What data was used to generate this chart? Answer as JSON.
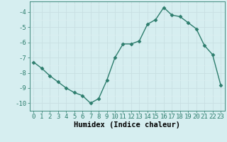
{
  "x": [
    0,
    1,
    2,
    3,
    4,
    5,
    6,
    7,
    8,
    9,
    10,
    11,
    12,
    13,
    14,
    15,
    16,
    17,
    18,
    19,
    20,
    21,
    22,
    23
  ],
  "y": [
    -7.3,
    -7.7,
    -8.2,
    -8.6,
    -9.0,
    -9.3,
    -9.5,
    -10.0,
    -9.7,
    -8.5,
    -7.0,
    -6.1,
    -6.1,
    -5.9,
    -4.8,
    -4.5,
    -3.7,
    -4.2,
    -4.3,
    -4.7,
    -5.1,
    -6.2,
    -6.8,
    -8.8
  ],
  "line_color": "#2d7d6d",
  "marker": "D",
  "marker_size": 2.5,
  "bg_color": "#d6eef0",
  "xlabel": "Humidex (Indice chaleur)",
  "xlim": [
    -0.5,
    23.5
  ],
  "ylim": [
    -10.5,
    -3.3
  ],
  "xticks": [
    0,
    1,
    2,
    3,
    4,
    5,
    6,
    7,
    8,
    9,
    10,
    11,
    12,
    13,
    14,
    15,
    16,
    17,
    18,
    19,
    20,
    21,
    22,
    23
  ],
  "yticks": [
    -10,
    -9,
    -8,
    -7,
    -6,
    -5,
    -4
  ],
  "xlabel_fontsize": 7.5,
  "tick_fontsize": 6.5,
  "line_width": 1.0,
  "grid_color_major": "#c8dfe2",
  "grid_color_minor": "#dceef1"
}
